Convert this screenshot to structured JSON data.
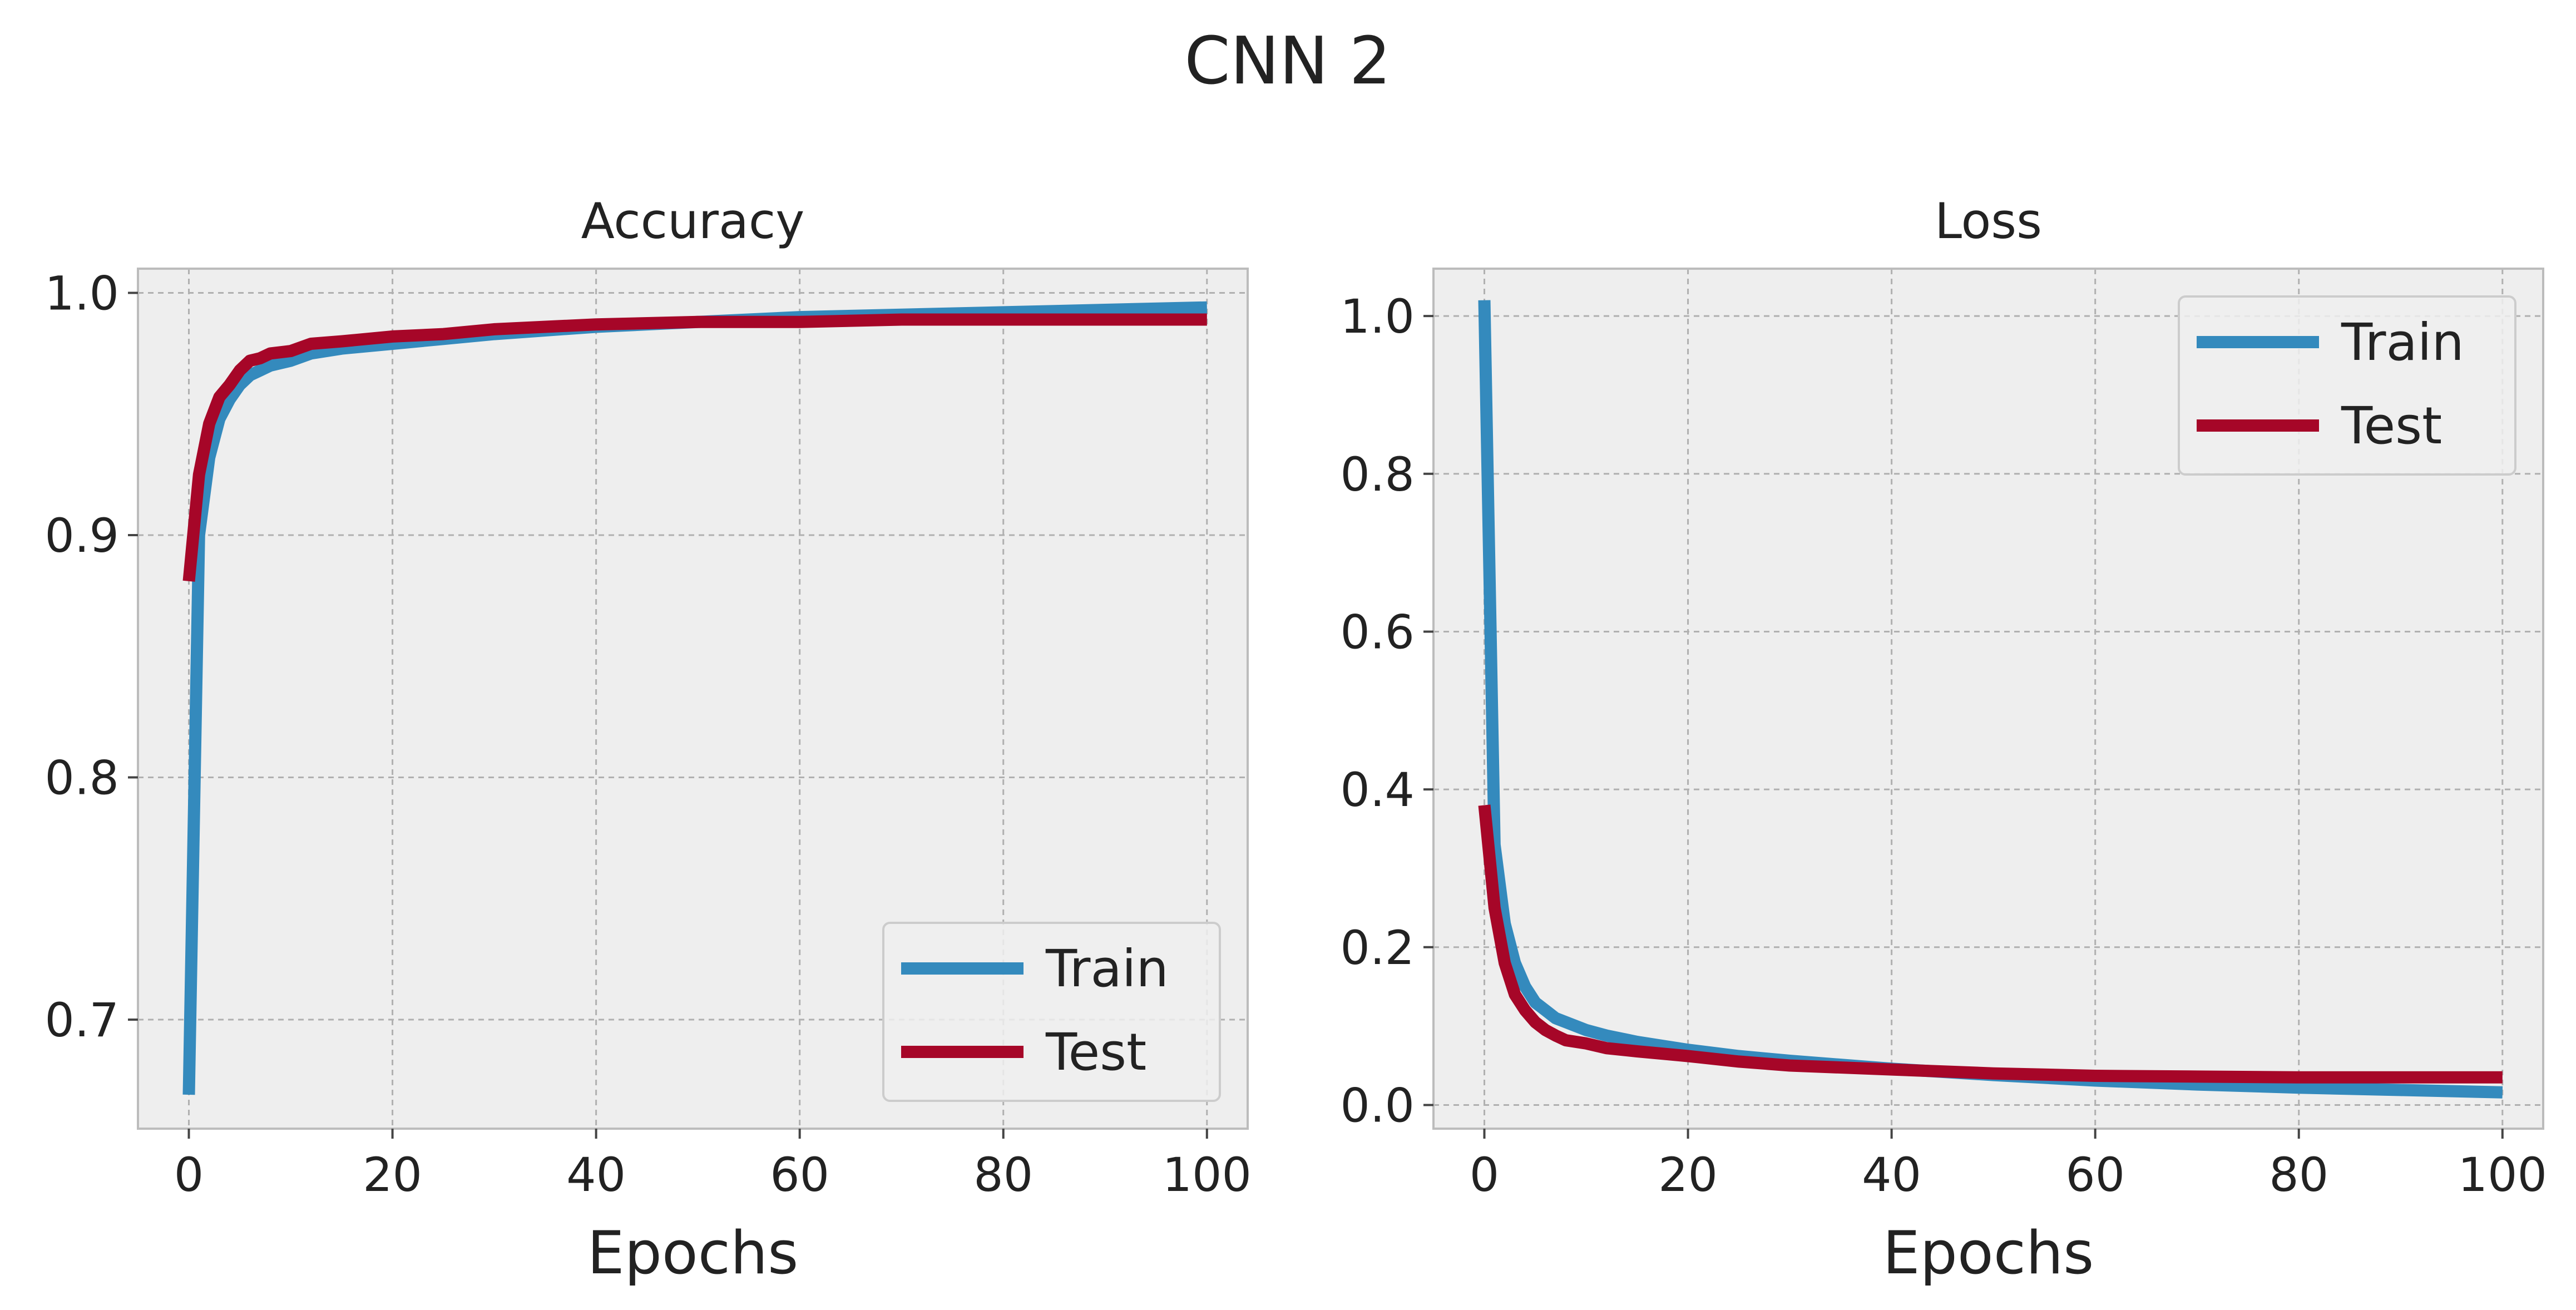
{
  "figure": {
    "title": "CNN 2"
  },
  "colors": {
    "train": "#348ABD",
    "test": "#A60628",
    "axes_bg": "#EEEEEE",
    "grid": "#B0B0B0",
    "spine": "#BCBCBC"
  },
  "chart_data": [
    {
      "type": "line",
      "title": "Accuracy",
      "xlabel": "Epochs",
      "ylabel": "",
      "xlim": [
        -5,
        104
      ],
      "ylim": [
        0.655,
        1.01
      ],
      "xticks": [
        0,
        20,
        40,
        60,
        80,
        100
      ],
      "xtick_labels": [
        "0",
        "20",
        "40",
        "60",
        "80",
        "100"
      ],
      "yticks": [
        0.7,
        0.8,
        0.9,
        1.0
      ],
      "ytick_labels": [
        "0.7",
        "0.8",
        "0.9",
        "1.0"
      ],
      "grid": true,
      "legend_position": "lower-right",
      "x": [
        0,
        1,
        2,
        3,
        4,
        5,
        6,
        7,
        8,
        10,
        12,
        15,
        20,
        25,
        30,
        40,
        50,
        60,
        70,
        80,
        90,
        100
      ],
      "series": [
        {
          "name": "Train",
          "color_key": "train",
          "values": [
            0.669,
            0.9,
            0.932,
            0.948,
            0.956,
            0.962,
            0.966,
            0.968,
            0.97,
            0.972,
            0.975,
            0.977,
            0.979,
            0.981,
            0.983,
            0.986,
            0.988,
            0.99,
            0.991,
            0.992,
            0.993,
            0.994
          ]
        },
        {
          "name": "Test",
          "color_key": "test",
          "values": [
            0.881,
            0.925,
            0.946,
            0.957,
            0.962,
            0.968,
            0.972,
            0.973,
            0.975,
            0.976,
            0.979,
            0.98,
            0.982,
            0.983,
            0.985,
            0.987,
            0.988,
            0.988,
            0.989,
            0.989,
            0.989,
            0.989
          ]
        }
      ]
    },
    {
      "type": "line",
      "title": "Loss",
      "xlabel": "Epochs",
      "ylabel": "",
      "xlim": [
        -5,
        104
      ],
      "ylim": [
        -0.03,
        1.06
      ],
      "xticks": [
        0,
        20,
        40,
        60,
        80,
        100
      ],
      "xtick_labels": [
        "0",
        "20",
        "40",
        "60",
        "80",
        "100"
      ],
      "yticks": [
        0.0,
        0.2,
        0.4,
        0.6,
        0.8,
        1.0
      ],
      "ytick_labels": [
        "0.0",
        "0.2",
        "0.4",
        "0.6",
        "0.8",
        "1.0"
      ],
      "grid": true,
      "legend_position": "upper-right",
      "x": [
        0,
        1,
        2,
        3,
        4,
        5,
        6,
        7,
        8,
        10,
        12,
        15,
        20,
        25,
        30,
        40,
        50,
        60,
        70,
        80,
        90,
        100
      ],
      "series": [
        {
          "name": "Train",
          "color_key": "train",
          "values": [
            1.02,
            0.33,
            0.23,
            0.18,
            0.15,
            0.13,
            0.12,
            0.11,
            0.105,
            0.095,
            0.088,
            0.08,
            0.07,
            0.062,
            0.056,
            0.046,
            0.038,
            0.031,
            0.026,
            0.022,
            0.019,
            0.016
          ]
        },
        {
          "name": "Test",
          "color_key": "test",
          "values": [
            0.38,
            0.25,
            0.18,
            0.14,
            0.12,
            0.105,
            0.095,
            0.088,
            0.082,
            0.078,
            0.072,
            0.068,
            0.062,
            0.055,
            0.05,
            0.045,
            0.04,
            0.037,
            0.036,
            0.035,
            0.035,
            0.035
          ]
        }
      ]
    }
  ]
}
